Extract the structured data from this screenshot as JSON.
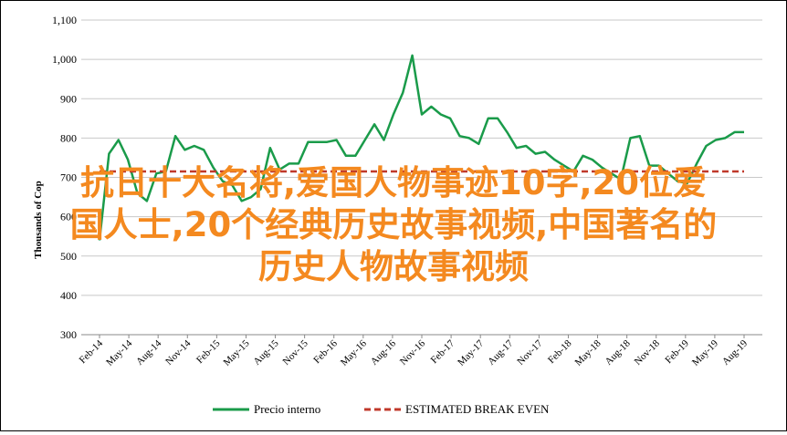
{
  "chart_data": {
    "type": "line",
    "title": "",
    "xlabel": "",
    "ylabel": "Thousands of Cop",
    "ylim": [
      300,
      1100
    ],
    "yticks": [
      300,
      400,
      500,
      600,
      700,
      800,
      900,
      1000,
      1100
    ],
    "ytick_labels": [
      "300",
      "400",
      "500",
      "600",
      "700",
      "800",
      "900",
      "1,000",
      "1,100"
    ],
    "grid": "horizontal",
    "legend_position": "bottom",
    "x_tick_labels": [
      "Feb-14",
      "May-14",
      "Aug-14",
      "Nov-14",
      "Feb-15",
      "May-15",
      "Aug-15",
      "Nov-15",
      "Feb-16",
      "May-16",
      "Aug-16",
      "Nov-16",
      "Feb-17",
      "May-17",
      "Aug-17",
      "Nov-17",
      "Feb-18",
      "May-18",
      "Aug-18",
      "Nov-18",
      "Feb-19",
      "May-19",
      "Aug-19"
    ],
    "series": [
      {
        "name": "Precio interno",
        "color": "#1a9b4a",
        "style": "solid",
        "values": [
          540,
          760,
          795,
          745,
          660,
          640,
          710,
          715,
          805,
          770,
          780,
          770,
          725,
          690,
          680,
          640,
          650,
          670,
          775,
          720,
          735,
          735,
          790,
          790,
          790,
          795,
          755,
          755,
          795,
          835,
          795,
          860,
          915,
          1010,
          860,
          880,
          860,
          850,
          805,
          800,
          785,
          850,
          850,
          815,
          775,
          780,
          760,
          765,
          745,
          730,
          715,
          755,
          745,
          725,
          710,
          695,
          800,
          805,
          730,
          730,
          710,
          690,
          685,
          735,
          780,
          795,
          800,
          815,
          815
        ]
      },
      {
        "name": "ESTIMATED BREAK EVEN",
        "color": "#c0392b",
        "style": "dashed",
        "values": [
          715,
          715
        ]
      }
    ]
  },
  "overlay_text": [
    "抗日十大名将,爱国人物事迹10字,20位爱",
    "国人士,20个经典历史故事视频,中国著名的",
    "历史人物故事视频"
  ]
}
